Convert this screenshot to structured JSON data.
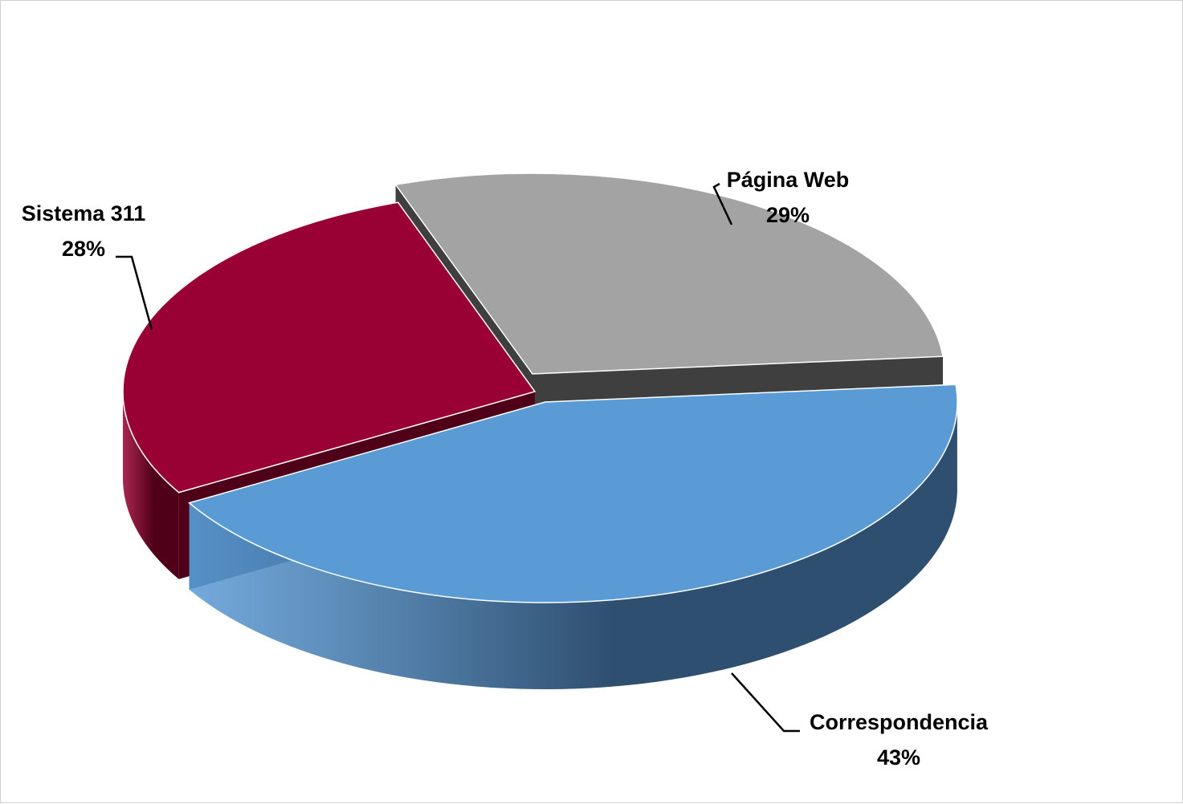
{
  "chart_data": {
    "type": "pie",
    "three_d": true,
    "exploded": true,
    "title": "",
    "legend": "none",
    "labels_show": "category name and percentage with leader lines",
    "slices": [
      {
        "name": "Página Web",
        "value": 29,
        "label": "29%",
        "color": "#a3a3a3",
        "side_color": "#3f3f3f"
      },
      {
        "name": "Correspondencia",
        "value": 43,
        "label": "43%",
        "color": "#5b9bd5",
        "side_color": "#2f4f70"
      },
      {
        "name": "Sistema 311",
        "value": 28,
        "label": "28%",
        "color": "#990033",
        "side_color": "#4f0018"
      }
    ]
  }
}
